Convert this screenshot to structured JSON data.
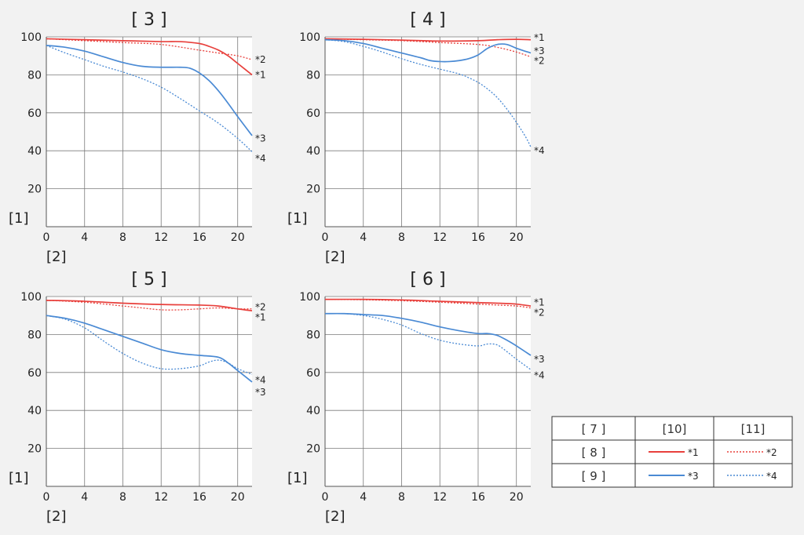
{
  "chart_data": [
    {
      "type": "line",
      "title": "[ 3 ]",
      "ylabel": "[1]",
      "xlabel": "[2]",
      "xlim": [
        0,
        21.5
      ],
      "ylim": [
        0,
        100
      ],
      "xticks": [
        0,
        4,
        8,
        12,
        16,
        20
      ],
      "yticks": [
        20,
        40,
        60,
        80,
        100
      ],
      "grid": true,
      "series": [
        {
          "name": "*1",
          "color": "#e8403c",
          "style": "solid",
          "x": [
            0,
            4,
            8,
            12,
            14,
            16,
            17,
            18,
            19,
            20,
            21.5
          ],
          "y": [
            99,
            98.5,
            98,
            97.5,
            97.5,
            96.5,
            95,
            93,
            90,
            86,
            80
          ]
        },
        {
          "name": "*2",
          "color": "#e8403c",
          "style": "dotted",
          "x": [
            0,
            4,
            8,
            12,
            16,
            18,
            20,
            21.5
          ],
          "y": [
            99,
            98,
            97,
            96,
            93,
            91.5,
            90,
            88
          ]
        },
        {
          "name": "*3",
          "color": "#4a8ad4",
          "style": "solid",
          "x": [
            0,
            2,
            4,
            6,
            8,
            10,
            12,
            14,
            15,
            16,
            17,
            18,
            19,
            20,
            21.5
          ],
          "y": [
            95.5,
            94.5,
            92.5,
            89.5,
            86.5,
            84.5,
            84,
            84,
            83.5,
            81,
            77,
            71.5,
            65,
            58,
            48
          ]
        },
        {
          "name": "*4",
          "color": "#4a8ad4",
          "style": "dotted",
          "x": [
            0,
            2,
            4,
            6,
            8,
            10,
            12,
            14,
            16,
            18,
            20,
            21.5
          ],
          "y": [
            95.5,
            91.5,
            88,
            84.5,
            81.5,
            78,
            73.5,
            67.5,
            61,
            54.5,
            46.5,
            39.5
          ]
        }
      ],
      "labels": [
        {
          "text": "*2",
          "x": 21.5,
          "y": 88
        },
        {
          "text": "*1",
          "x": 21.5,
          "y": 80
        },
        {
          "text": "*3",
          "x": 21.5,
          "y": 46.5
        },
        {
          "text": "*4",
          "x": 21.5,
          "y": 36
        }
      ]
    },
    {
      "type": "line",
      "title": "[ 4 ]",
      "ylabel": "[1]",
      "xlabel": "[2]",
      "xlim": [
        0,
        21.5
      ],
      "ylim": [
        0,
        100
      ],
      "xticks": [
        0,
        4,
        8,
        12,
        16,
        20
      ],
      "yticks": [
        20,
        40,
        60,
        80,
        100
      ],
      "grid": true,
      "series": [
        {
          "name": "*1",
          "color": "#e8403c",
          "style": "solid",
          "x": [
            0,
            4,
            8,
            12,
            16,
            18,
            20,
            21.5
          ],
          "y": [
            99,
            98.7,
            98.3,
            97.8,
            98,
            98.5,
            98.7,
            98.5
          ]
        },
        {
          "name": "*2",
          "color": "#e8403c",
          "style": "dotted",
          "x": [
            0,
            4,
            8,
            12,
            16,
            18,
            20,
            21.5
          ],
          "y": [
            99,
            98.5,
            98,
            97,
            96,
            94.5,
            92,
            89.5
          ]
        },
        {
          "name": "*3",
          "color": "#4a8ad4",
          "style": "solid",
          "x": [
            0,
            2,
            4,
            6,
            8,
            10,
            11,
            12,
            13,
            14,
            15,
            16,
            17,
            18,
            19,
            20,
            21.5
          ],
          "y": [
            98.5,
            98,
            96.5,
            94,
            91.5,
            89,
            87.5,
            87,
            87,
            87.5,
            88.5,
            90.5,
            94,
            96,
            96,
            94,
            91.5
          ]
        },
        {
          "name": "*4",
          "color": "#4a8ad4",
          "style": "dotted",
          "x": [
            0,
            2,
            4,
            6,
            8,
            10,
            12,
            14,
            15,
            16,
            17,
            18,
            19,
            20,
            21,
            21.5
          ],
          "y": [
            98.5,
            97.5,
            95,
            92,
            88.5,
            85.5,
            83,
            80.5,
            78.5,
            76,
            72.5,
            68,
            62,
            55,
            47,
            42
          ]
        }
      ],
      "labels": [
        {
          "text": "*1",
          "x": 21.5,
          "y": 99.5
        },
        {
          "text": "*3",
          "x": 21.5,
          "y": 92.5
        },
        {
          "text": "*2",
          "x": 21.5,
          "y": 87.5
        },
        {
          "text": "*4",
          "x": 21.5,
          "y": 40
        }
      ]
    },
    {
      "type": "line",
      "title": "[ 5 ]",
      "ylabel": "[1]",
      "xlabel": "[2]",
      "xlim": [
        0,
        21.5
      ],
      "ylim": [
        0,
        100
      ],
      "xticks": [
        0,
        4,
        8,
        12,
        16,
        20
      ],
      "yticks": [
        20,
        40,
        60,
        80,
        100
      ],
      "grid": true,
      "series": [
        {
          "name": "*1",
          "color": "#e8403c",
          "style": "solid",
          "x": [
            0,
            4,
            8,
            12,
            16,
            18,
            20,
            21.5
          ],
          "y": [
            98,
            97.5,
            96.5,
            95.8,
            95.5,
            95,
            93.5,
            92.5
          ]
        },
        {
          "name": "*2",
          "color": "#e8403c",
          "style": "dotted",
          "x": [
            0,
            4,
            8,
            10,
            12,
            14,
            16,
            18,
            20,
            21.5
          ],
          "y": [
            98,
            97,
            95,
            94,
            93,
            93,
            93.5,
            94,
            93.5,
            93.5
          ]
        },
        {
          "name": "*3",
          "color": "#4a8ad4",
          "style": "solid",
          "x": [
            0,
            2,
            4,
            6,
            8,
            10,
            12,
            14,
            16,
            18,
            19,
            20,
            21.5
          ],
          "y": [
            90,
            88.5,
            86,
            82.5,
            79,
            75.5,
            72,
            70,
            69,
            68,
            65,
            61,
            55
          ]
        },
        {
          "name": "*4",
          "color": "#4a8ad4",
          "style": "dotted",
          "x": [
            0,
            2,
            4,
            6,
            8,
            10,
            12,
            14,
            16,
            17,
            18,
            19,
            20,
            21.5
          ],
          "y": [
            90,
            88,
            83.5,
            76.5,
            70,
            65,
            62,
            62,
            63.5,
            65.5,
            66.5,
            65,
            62,
            59
          ]
        }
      ],
      "labels": [
        {
          "text": "*2",
          "x": 21.5,
          "y": 94.5
        },
        {
          "text": "*1",
          "x": 21.5,
          "y": 89
        },
        {
          "text": "*4",
          "x": 21.5,
          "y": 56
        },
        {
          "text": "*3",
          "x": 21.5,
          "y": 49.5
        }
      ]
    },
    {
      "type": "line",
      "title": "[ 6 ]",
      "ylabel": "[1]",
      "xlabel": "[2]",
      "xlim": [
        0,
        21.5
      ],
      "ylim": [
        0,
        100
      ],
      "xticks": [
        0,
        4,
        8,
        12,
        16,
        20
      ],
      "yticks": [
        20,
        40,
        60,
        80,
        100
      ],
      "grid": true,
      "series": [
        {
          "name": "*1",
          "color": "#e8403c",
          "style": "solid",
          "x": [
            0,
            4,
            8,
            12,
            16,
            18,
            20,
            21.5
          ],
          "y": [
            98.5,
            98.5,
            98.2,
            97.5,
            96.8,
            96.5,
            96,
            95
          ]
        },
        {
          "name": "*2",
          "color": "#e8403c",
          "style": "dotted",
          "x": [
            0,
            4,
            8,
            12,
            16,
            18,
            20,
            21.5
          ],
          "y": [
            98.5,
            98.3,
            97.8,
            97,
            96,
            95.5,
            95,
            94
          ]
        },
        {
          "name": "*3",
          "color": "#4a8ad4",
          "style": "solid",
          "x": [
            0,
            2,
            4,
            6,
            8,
            10,
            12,
            14,
            16,
            17,
            18,
            19,
            20,
            21.5
          ],
          "y": [
            91,
            91,
            90.5,
            90,
            88.5,
            86.5,
            84,
            82,
            80.5,
            80.5,
            79.5,
            77,
            74,
            69
          ]
        },
        {
          "name": "*4",
          "color": "#4a8ad4",
          "style": "dotted",
          "x": [
            0,
            2,
            4,
            6,
            8,
            10,
            12,
            14,
            16,
            17,
            18,
            19,
            20,
            21.5
          ],
          "y": [
            91,
            91,
            90,
            88,
            85,
            80.5,
            77,
            75,
            74,
            75,
            74.5,
            71,
            67,
            61.5
          ]
        }
      ],
      "labels": [
        {
          "text": "*1",
          "x": 21.5,
          "y": 97
        },
        {
          "text": "*2",
          "x": 21.5,
          "y": 91.5
        },
        {
          "text": "*3",
          "x": 21.5,
          "y": 67
        },
        {
          "text": "*4",
          "x": 21.5,
          "y": 58.5
        }
      ]
    }
  ],
  "legend": {
    "header": [
      "[ 7 ]",
      "[10]",
      "[11]"
    ],
    "rows": [
      {
        "label": "[ 8 ]",
        "c1": {
          "name": "*1",
          "color": "#e8403c",
          "style": "solid"
        },
        "c2": {
          "name": "*2",
          "color": "#e8403c",
          "style": "dotted"
        }
      },
      {
        "label": "[ 9 ]",
        "c1": {
          "name": "*3",
          "color": "#4a8ad4",
          "style": "solid"
        },
        "c2": {
          "name": "*4",
          "color": "#4a8ad4",
          "style": "dotted"
        }
      }
    ]
  },
  "colors": {
    "grid": "#7a7a7a",
    "axis": "#555555",
    "plot_bg": "#ffffff",
    "page_bg": "#f2f2f2"
  }
}
